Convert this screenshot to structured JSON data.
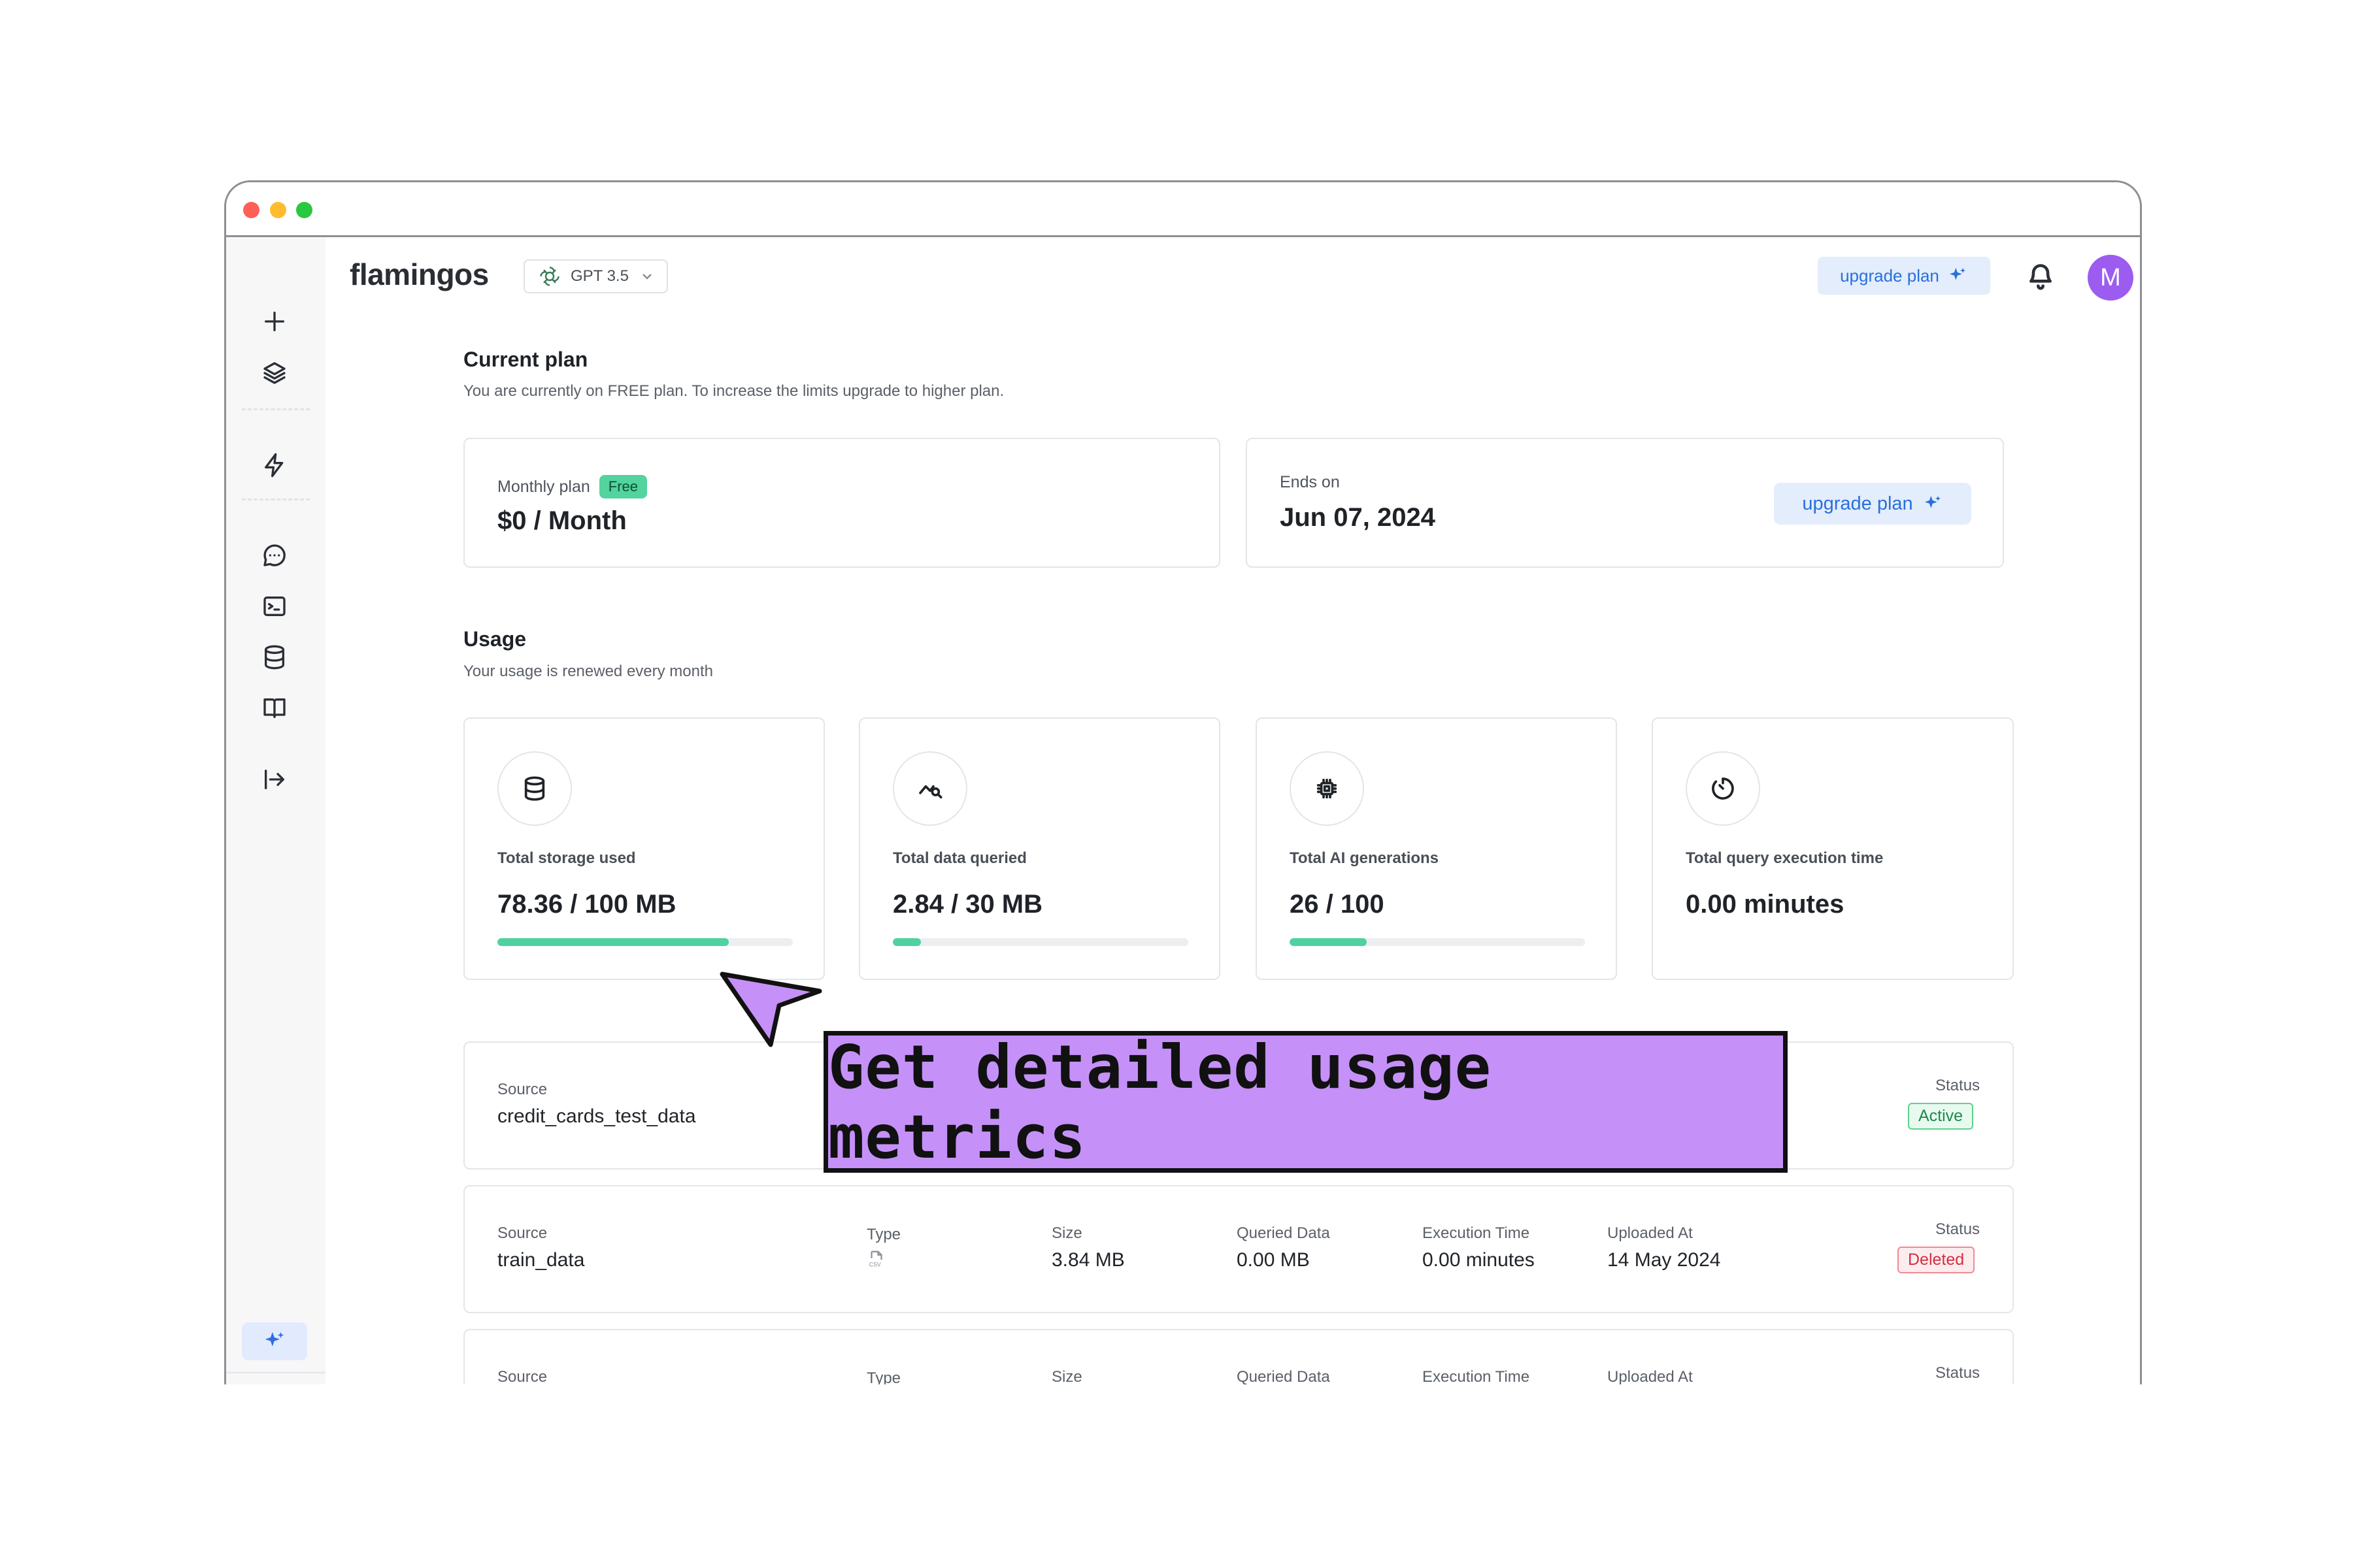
{
  "app": {
    "name": "flamingos",
    "model": "GPT 3.5",
    "upgrade_label": "upgrade plan",
    "avatar_initial": "M"
  },
  "current_plan": {
    "title": "Current plan",
    "subtitle": "You are currently on FREE plan. To increase the limits upgrade to higher plan.",
    "plan_label": "Monthly plan",
    "plan_badge": "Free",
    "price": "$0 / Month",
    "ends_label": "Ends on",
    "ends_value": "Jun 07, 2024",
    "upgrade_label": "upgrade plan"
  },
  "usage": {
    "title": "Usage",
    "subtitle": "Your usage is renewed every month",
    "cards": [
      {
        "label": "Total storage used",
        "value": "78.36 / 100 MB",
        "progress": 0.7836,
        "icon": "database-icon"
      },
      {
        "label": "Total data queried",
        "value": "2.84 / 30 MB",
        "progress": 0.0947,
        "icon": "chart-search-icon"
      },
      {
        "label": "Total AI generations",
        "value": "26 / 100",
        "progress": 0.26,
        "icon": "chip-icon"
      },
      {
        "label": "Total query execution time",
        "value": "0.00 minutes",
        "progress": null,
        "icon": "timer-icon"
      }
    ]
  },
  "table": {
    "headers": {
      "source": "Source",
      "type": "Type",
      "size": "Size",
      "queried": "Queried Data",
      "exec": "Execution Time",
      "uploaded": "Uploaded At",
      "status": "Status"
    },
    "rows": [
      {
        "source": "credit_cards_test_data",
        "status": "Active"
      },
      {
        "source": "train_data",
        "type": "CSV",
        "size": "3.84 MB",
        "queried": "0.00 MB",
        "exec": "0.00 minutes",
        "uploaded": "14 May 2024",
        "status": "Deleted"
      }
    ]
  },
  "promo": {
    "text": "Get detailed usage metrics"
  },
  "colors": {
    "accent": "#2a6fdd",
    "progress": "#4fd1a0",
    "avatar": "#9c5cf0",
    "banner": "#c591f8"
  }
}
